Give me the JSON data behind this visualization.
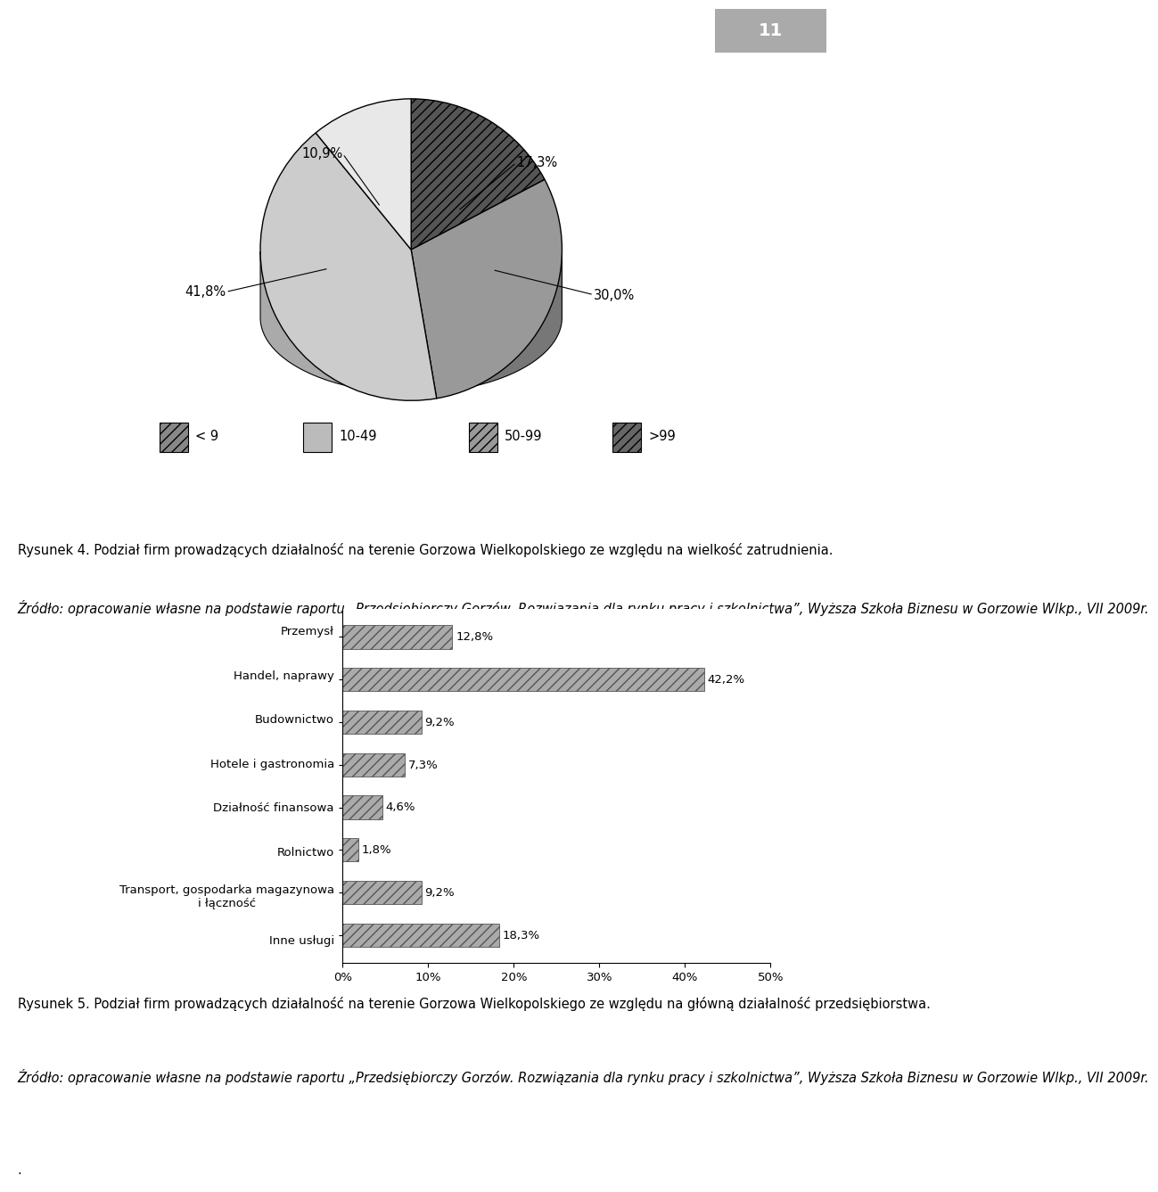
{
  "page_number": "11",
  "pie_values": [
    17.3,
    30.0,
    41.8,
    10.9
  ],
  "pie_labels": [
    "17,3%",
    "30,0%",
    "41,8%",
    "10,9%"
  ],
  "pie_colors_top": [
    "#666666",
    "#bbbbbb",
    "#d0d0d0",
    "#e0e0e0"
  ],
  "pie_colors_side": [
    "#444444",
    "#999999",
    "#aaaaaa",
    "#bbbbbb"
  ],
  "pie_hatches": [
    "///",
    "===",
    "///",
    ""
  ],
  "pie_legend_labels": [
    "< 9",
    "10-49",
    "50-99",
    ">99"
  ],
  "pie_legend_hatches": [
    "///",
    "===",
    "///",
    "///"
  ],
  "pie_legend_facecolors": [
    "#bbbbbb",
    "#cccccc",
    "#aaaaaa",
    "#777777"
  ],
  "figure4_caption_bold": "Rysunek 4.",
  "figure4_caption_rest": " Podział firm prowadzących działalność na terenie Gorzowa Wielkopolskiego ze względu na wielkość zatrudnienia.",
  "figure4_source_italic": "Źródło: opracowanie własne na podstawie raportu „Przedsiębiorczy Gorzów. Rozwiązania dla rynku pracy i szkolnictwa”, Wyższa Szkoła Biznesu w Gorzowie Wlkp., VII 2009r.",
  "bar_categories": [
    "Inne usługi",
    "Transport, gospodarka magazynowa\ni łączność",
    "Rolnictwo",
    "Działność finansowa",
    "Hotele i gastronomia",
    "Budownictwo",
    "Handel, naprawy",
    "Przemysł"
  ],
  "bar_values": [
    18.3,
    9.2,
    1.8,
    4.6,
    7.3,
    9.2,
    42.2,
    12.8
  ],
  "bar_labels": [
    "18,3%",
    "9,2%",
    "1,8%",
    "4,6%",
    "7,3%",
    "9,2%",
    "42,2%",
    "12,8%"
  ],
  "bar_color": "#aaaaaa",
  "bar_hatch": "///",
  "bar_xlim": [
    0,
    50
  ],
  "bar_xticks": [
    0,
    10,
    20,
    30,
    40,
    50
  ],
  "bar_xticklabels": [
    "0%",
    "10%",
    "20%",
    "30%",
    "40%",
    "50%"
  ],
  "figure5_caption_bold": "Rysunek 5.",
  "figure5_caption_rest": " Podział firm prowadzących działalność na terenie Gorzowa Wielkopolskiego ze względu na główną działalność przedsiębiorstwa.",
  "figure5_source_italic": "Źródło: opracowanie własne na podstawie raportu „Przedsiębiorczy Gorzów. Rozwiązania dla rynku pracy i szkolnictwa”, Wyższa Szkoła Biznesu w Gorzowie Wlkp., VII 2009r.",
  "background_color": "#ffffff",
  "text_color": "#000000",
  "font_size_caption": 10.5,
  "font_size_axis": 9.5,
  "font_size_bar_label": 9.5,
  "font_size_pie_label": 10.5,
  "font_size_legend": 10.5
}
